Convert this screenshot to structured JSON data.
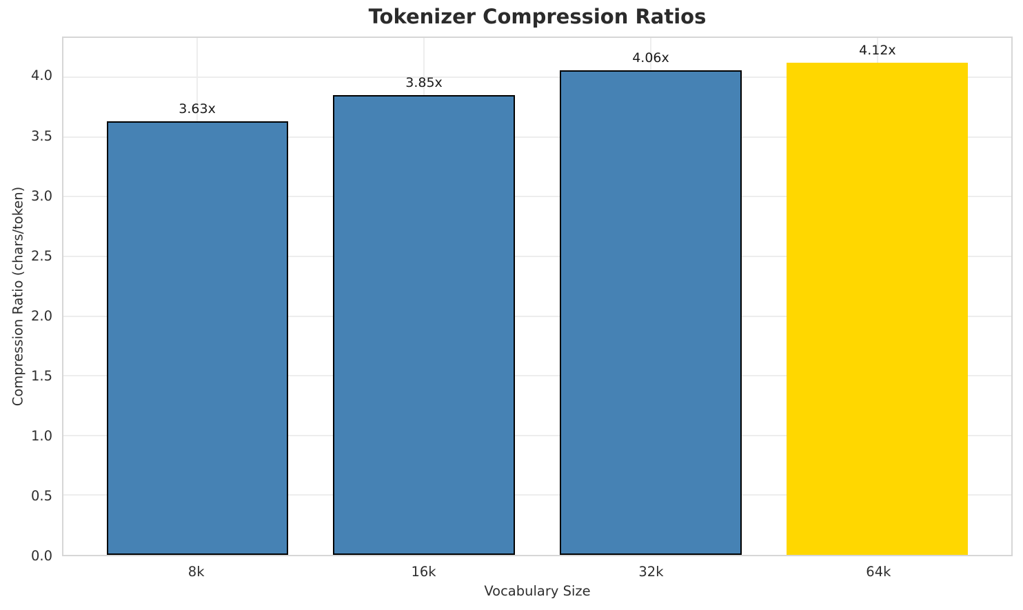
{
  "chart_data": {
    "type": "bar",
    "title": "Tokenizer Compression Ratios",
    "xlabel": "Vocabulary Size",
    "ylabel": "Compression Ratio (chars/token)",
    "categories": [
      "8k",
      "16k",
      "32k",
      "64k"
    ],
    "values": [
      3.63,
      3.85,
      4.06,
      4.12
    ],
    "bar_labels": [
      "3.63x",
      "3.85x",
      "4.06x",
      "4.12x"
    ],
    "bar_colors": [
      "#4682B4",
      "#4682B4",
      "#4682B4",
      "#FFD700"
    ],
    "bar_edge_colors": [
      "#000000",
      "#000000",
      "#000000",
      "none"
    ],
    "highlighted_category": "64k",
    "yticks": [
      0.0,
      0.5,
      1.0,
      1.5,
      2.0,
      2.5,
      3.0,
      3.5,
      4.0
    ],
    "ytick_labels": [
      "0.0",
      "0.5",
      "1.0",
      "1.5",
      "2.0",
      "2.5",
      "3.0",
      "3.5",
      "4.0"
    ],
    "ylim": [
      0,
      4.33
    ],
    "xlim": [
      -0.59,
      3.59
    ],
    "bar_width_units": 0.8,
    "grid": "both",
    "legend": "none",
    "colors": {
      "steel_blue": "#4682B4",
      "gold": "#FFD700",
      "grid": "#ededed",
      "spine": "#d6d6d6",
      "text": "#2e2e2e",
      "title": "#2b2b2b"
    }
  }
}
